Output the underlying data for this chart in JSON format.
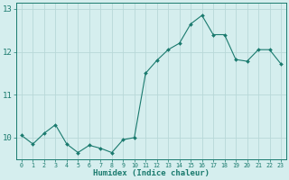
{
  "x": [
    0,
    1,
    2,
    3,
    4,
    5,
    6,
    7,
    8,
    9,
    10,
    11,
    12,
    13,
    14,
    15,
    16,
    17,
    18,
    19,
    20,
    21,
    22,
    23
  ],
  "y": [
    10.05,
    9.85,
    10.1,
    10.3,
    9.85,
    9.65,
    9.82,
    9.75,
    9.65,
    9.95,
    10.0,
    11.5,
    11.8,
    12.05,
    12.2,
    12.65,
    12.85,
    12.4,
    12.4,
    11.82,
    11.78,
    12.05,
    12.05,
    11.72
  ],
  "line_color": "#1a7a6e",
  "marker": "D",
  "marker_size": 2.0,
  "bg_color": "#d5eeee",
  "grid_color": "#b8d8d8",
  "xlabel": "Humidex (Indice chaleur)",
  "xlim": [
    -0.5,
    23.5
  ],
  "ylim": [
    9.5,
    13.15
  ],
  "yticks": [
    10,
    11,
    12,
    13
  ],
  "xticks": [
    0,
    1,
    2,
    3,
    4,
    5,
    6,
    7,
    8,
    9,
    10,
    11,
    12,
    13,
    14,
    15,
    16,
    17,
    18,
    19,
    20,
    21,
    22,
    23
  ],
  "font_family": "monospace",
  "tick_color": "#1a7a6e",
  "label_color": "#1a7a6e",
  "xlabel_fontsize": 6.5,
  "xtick_fontsize": 4.8,
  "ytick_fontsize": 6.5
}
